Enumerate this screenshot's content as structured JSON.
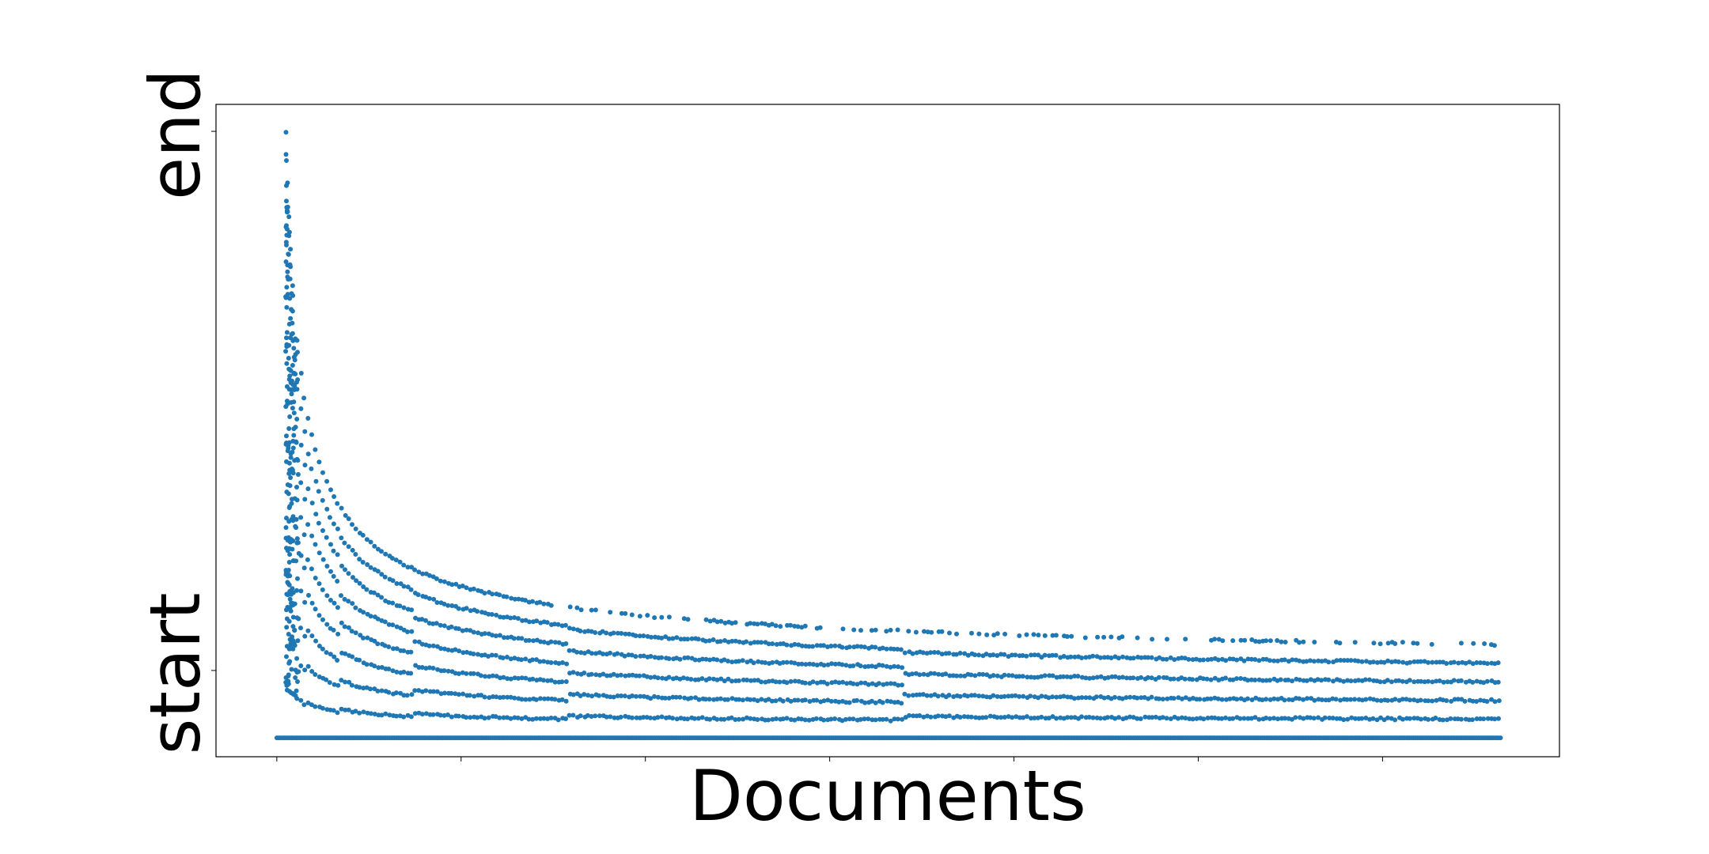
{
  "chart_data": {
    "type": "scatter",
    "title": "",
    "xlabel": "Documents",
    "ylabel": "",
    "ytick_labels": [
      "start",
      "end"
    ],
    "marker_color": "#1f77b4",
    "frame_color": "#000000",
    "grid": false,
    "legend": "none",
    "x_ticks": [
      0,
      1000,
      2000,
      3000,
      4000,
      5000,
      6000
    ],
    "xlim": [
      -330,
      6960
    ],
    "ylim": [
      -0.16,
      1.05
    ],
    "description_of_series": "documents sorted by length; each document's chunk boundaries plotted at normalized position",
    "series": [
      {
        "name": "",
        "document_lengths": [
          {
            "x": 50,
            "chunks": 27
          },
          {
            "x": 60,
            "chunks": 22
          },
          {
            "x": 70,
            "chunks": 18
          },
          {
            "x": 80,
            "chunks": 14
          },
          {
            "x": 90,
            "chunks": 11
          },
          {
            "x": 100,
            "chunks": 9
          },
          {
            "x": 120,
            "chunks": 8
          },
          {
            "x": 150,
            "chunks": 7
          },
          {
            "x": 200,
            "chunks": 6
          },
          {
            "x": 300,
            "chunks": 5
          },
          {
            "x": 500,
            "chunks": 5
          },
          {
            "x": 800,
            "chunks": 4
          },
          {
            "x": 1500,
            "chunks": 4
          },
          {
            "x": 3000,
            "chunks": 3
          },
          {
            "x": 6640,
            "chunks": 3
          }
        ],
        "end_x": 6640
      }
    ]
  }
}
